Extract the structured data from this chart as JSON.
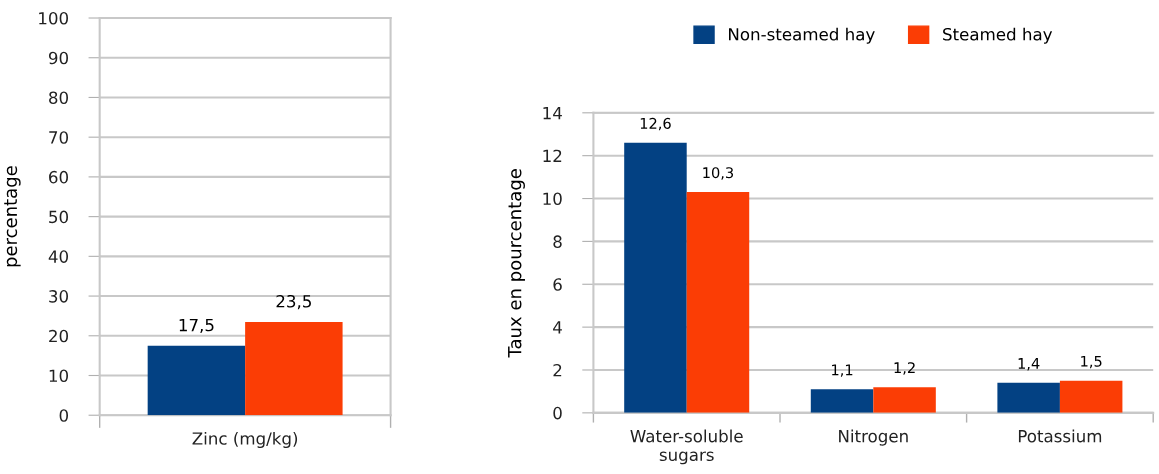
{
  "chart_data": [
    {
      "type": "bar",
      "ylabel": "percentage",
      "categories": [
        "Zinc (mg/kg)"
      ],
      "series": [
        {
          "color": "#034183",
          "values": [
            17.5
          ],
          "value_labels": [
            "17,5"
          ]
        },
        {
          "color": "#fb3d05",
          "values": [
            23.5
          ],
          "value_labels": [
            "23,5"
          ]
        }
      ],
      "ylim": [
        0,
        100
      ],
      "yticks": [
        0,
        10,
        20,
        30,
        40,
        50,
        60,
        70,
        80,
        90,
        100
      ],
      "grid": "y",
      "legend": false
    },
    {
      "type": "bar",
      "ylabel": "Taux en pourcentage",
      "categories": [
        "Water-soluble\nsugars",
        "Nitrogen",
        "Potassium"
      ],
      "series": [
        {
          "name": "Non-steamed hay",
          "color": "#034183",
          "values": [
            12.6,
            1.1,
            1.4
          ],
          "value_labels": [
            "12,6",
            "1,1",
            "1,4"
          ]
        },
        {
          "name": "Steamed hay",
          "color": "#fb3d05",
          "values": [
            10.3,
            1.2,
            1.5
          ],
          "value_labels": [
            "10,3",
            "1,2",
            "1,5"
          ]
        }
      ],
      "ylim": [
        0,
        14
      ],
      "yticks": [
        0,
        2,
        4,
        6,
        8,
        10,
        12,
        14
      ],
      "grid": "y",
      "legend": "top"
    }
  ]
}
